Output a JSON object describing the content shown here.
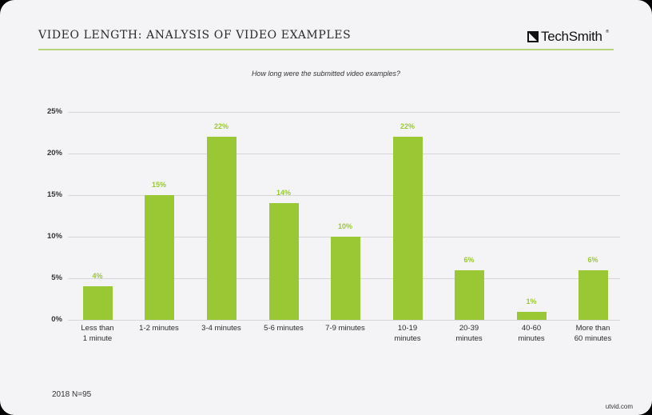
{
  "header": {
    "title": "VIDEO LENGTH: ANALYSIS OF VIDEO EXAMPLES",
    "logo_text": "TechSmith",
    "logo_reg": "®"
  },
  "colors": {
    "bar": "#9ac834",
    "rule": "#b8d47a",
    "background": "#f4f4f6"
  },
  "footer": {
    "note": "2018 N=95",
    "watermark": "utvid.com"
  },
  "chart_data": {
    "type": "bar",
    "title": "How long were the submitted video examples?",
    "xlabel": "",
    "ylabel": "",
    "ylim": [
      0,
      25
    ],
    "yticks": [
      "0%",
      "5%",
      "10%",
      "15%",
      "20%",
      "25%"
    ],
    "grid": true,
    "legend": null,
    "categories": [
      "Less than 1 minute",
      "1-2 minutes",
      "3-4 minutes",
      "5-6 minutes",
      "7-9 minutes",
      "10-19 minutes",
      "20-39 minutes",
      "40-60 minutes",
      "More than 60 minutes"
    ],
    "category_lines": [
      [
        "Less than",
        "1 minute"
      ],
      [
        "1-2 minutes"
      ],
      [
        "3-4 minutes"
      ],
      [
        "5-6 minutes"
      ],
      [
        "7-9 minutes"
      ],
      [
        "10-19",
        "minutes"
      ],
      [
        "20-39",
        "minutes"
      ],
      [
        "40-60",
        "minutes"
      ],
      [
        "More than",
        "60 minutes"
      ]
    ],
    "values": [
      4,
      15,
      22,
      14,
      10,
      22,
      6,
      1,
      6
    ],
    "value_labels": [
      "4%",
      "15%",
      "22%",
      "14%",
      "10%",
      "22%",
      "6%",
      "1%",
      "6%"
    ]
  }
}
